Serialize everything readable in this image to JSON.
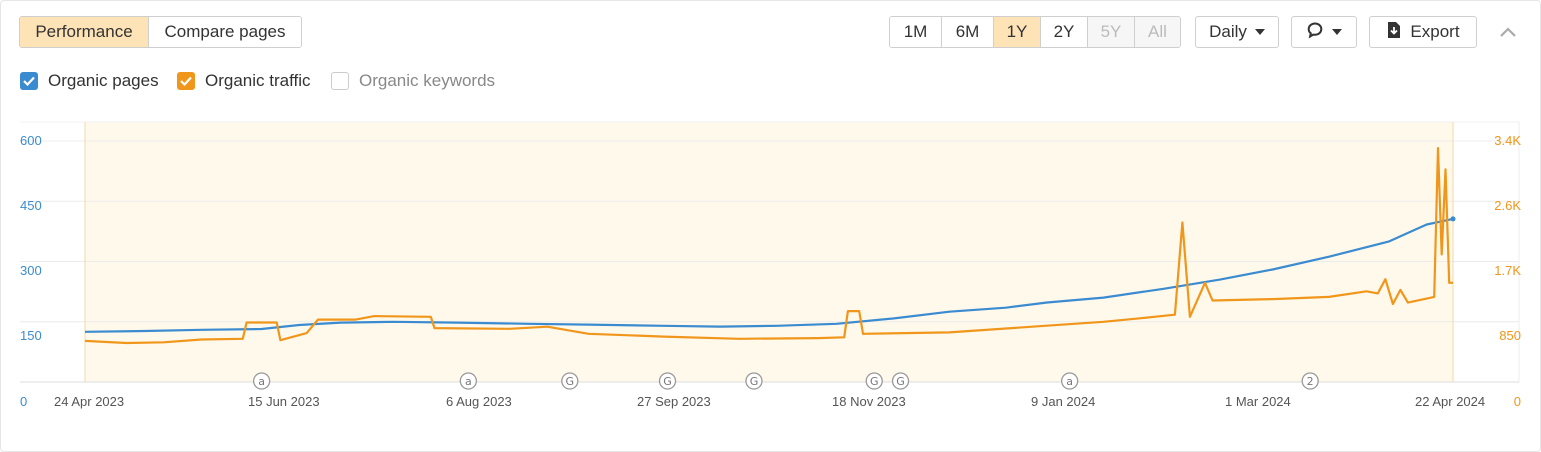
{
  "tabs": [
    {
      "label": "Performance",
      "active": true
    },
    {
      "label": "Compare pages",
      "active": false
    }
  ],
  "ranges": [
    {
      "label": "1M",
      "state": "normal"
    },
    {
      "label": "6M",
      "state": "normal"
    },
    {
      "label": "1Y",
      "state": "active"
    },
    {
      "label": "2Y",
      "state": "normal"
    },
    {
      "label": "5Y",
      "state": "disabled"
    },
    {
      "label": "All",
      "state": "disabled"
    }
  ],
  "interval_label": "Daily",
  "export_label": "Export",
  "legend": [
    {
      "label": "Organic pages",
      "checked": true,
      "color": "#3b8bd0"
    },
    {
      "label": "Organic traffic",
      "checked": true,
      "color": "#f0961a"
    },
    {
      "label": "Organic keywords",
      "checked": false,
      "color": "#999999"
    }
  ],
  "icons": {
    "comment": "comment-icon",
    "export": "download-icon",
    "collapse": "chevron-up-icon"
  },
  "colors": {
    "accent_bg": "#fde3b6",
    "pages": "#3b8bd0",
    "traffic": "#f0961a",
    "plot_bg": "#fff9ec"
  },
  "chart_data": {
    "type": "line",
    "x_ticks": [
      "24 Apr 2023",
      "15 Jun 2023",
      "6 Aug 2023",
      "27 Sep 2023",
      "18 Nov 2023",
      "9 Jan 2024",
      "1 Mar 2024",
      "22 Apr 2024"
    ],
    "x_range": [
      "2023-04-24",
      "2024-04-22"
    ],
    "y_left": {
      "label": "Organic pages",
      "ticks": [
        "0",
        "150",
        "300",
        "450",
        "600"
      ],
      "range": [
        0,
        600
      ]
    },
    "y_right": {
      "label": "Organic traffic",
      "ticks": [
        "0",
        "850",
        "1.7K",
        "2.6K",
        "3.4K"
      ],
      "range": [
        0,
        3400
      ]
    },
    "grid": true,
    "series": [
      {
        "name": "Organic pages",
        "axis": "left",
        "color": "#3b8bd0",
        "points": [
          [
            "2023-04-24",
            125
          ],
          [
            "2023-05-10",
            127
          ],
          [
            "2023-05-25",
            130
          ],
          [
            "2023-06-10",
            132
          ],
          [
            "2023-06-20",
            142
          ],
          [
            "2023-07-01",
            148
          ],
          [
            "2023-07-15",
            150
          ],
          [
            "2023-08-01",
            148
          ],
          [
            "2023-08-20",
            145
          ],
          [
            "2023-09-05",
            143
          ],
          [
            "2023-09-25",
            140
          ],
          [
            "2023-10-10",
            138
          ],
          [
            "2023-10-25",
            140
          ],
          [
            "2023-11-10",
            145
          ],
          [
            "2023-11-25",
            158
          ],
          [
            "2023-12-10",
            175
          ],
          [
            "2023-12-25",
            185
          ],
          [
            "2024-01-05",
            198
          ],
          [
            "2024-01-20",
            210
          ],
          [
            "2024-02-05",
            232
          ],
          [
            "2024-02-20",
            255
          ],
          [
            "2024-03-05",
            280
          ],
          [
            "2024-03-20",
            312
          ],
          [
            "2024-04-05",
            350
          ],
          [
            "2024-04-15",
            392
          ],
          [
            "2024-04-22",
            406
          ]
        ]
      },
      {
        "name": "Organic traffic",
        "axis": "right",
        "color": "#f0961a",
        "points": [
          [
            "2023-04-24",
            580
          ],
          [
            "2023-05-05",
            550
          ],
          [
            "2023-05-15",
            560
          ],
          [
            "2023-05-25",
            600
          ],
          [
            "2023-06-05",
            610
          ],
          [
            "2023-06-06",
            840
          ],
          [
            "2023-06-14",
            840
          ],
          [
            "2023-06-15",
            590
          ],
          [
            "2023-06-22",
            690
          ],
          [
            "2023-06-25",
            880
          ],
          [
            "2023-07-05",
            880
          ],
          [
            "2023-07-10",
            930
          ],
          [
            "2023-07-25",
            920
          ],
          [
            "2023-07-26",
            760
          ],
          [
            "2023-08-15",
            750
          ],
          [
            "2023-08-25",
            780
          ],
          [
            "2023-09-05",
            680
          ],
          [
            "2023-09-25",
            640
          ],
          [
            "2023-10-15",
            610
          ],
          [
            "2023-11-05",
            620
          ],
          [
            "2023-11-12",
            630
          ],
          [
            "2023-11-13",
            1000
          ],
          [
            "2023-11-16",
            1000
          ],
          [
            "2023-11-17",
            680
          ],
          [
            "2023-12-10",
            700
          ],
          [
            "2024-01-01",
            780
          ],
          [
            "2024-01-20",
            850
          ],
          [
            "2024-01-30",
            900
          ],
          [
            "2024-02-08",
            950
          ],
          [
            "2024-02-10",
            2250
          ],
          [
            "2024-02-12",
            920
          ],
          [
            "2024-02-16",
            1400
          ],
          [
            "2024-02-18",
            1150
          ],
          [
            "2024-03-05",
            1170
          ],
          [
            "2024-03-20",
            1200
          ],
          [
            "2024-03-30",
            1280
          ],
          [
            "2024-04-02",
            1250
          ],
          [
            "2024-04-04",
            1450
          ],
          [
            "2024-04-06",
            1100
          ],
          [
            "2024-04-08",
            1300
          ],
          [
            "2024-04-10",
            1120
          ],
          [
            "2024-04-17",
            1200
          ],
          [
            "2024-04-18",
            3300
          ],
          [
            "2024-04-19",
            1800
          ],
          [
            "2024-04-20",
            3000
          ],
          [
            "2024-04-21",
            1400
          ],
          [
            "2024-04-22",
            1400
          ]
        ]
      }
    ],
    "annotations": [
      {
        "date": "2023-06-10",
        "symbol": "a"
      },
      {
        "date": "2023-08-04",
        "symbol": "a"
      },
      {
        "date": "2023-08-31",
        "symbol": "G"
      },
      {
        "date": "2023-09-26",
        "symbol": "G"
      },
      {
        "date": "2023-10-19",
        "symbol": "G"
      },
      {
        "date": "2023-11-20",
        "symbol": "G"
      },
      {
        "date": "2023-11-27",
        "symbol": "G"
      },
      {
        "date": "2024-01-11",
        "symbol": "a"
      },
      {
        "date": "2024-03-15",
        "symbol": "2"
      }
    ]
  }
}
